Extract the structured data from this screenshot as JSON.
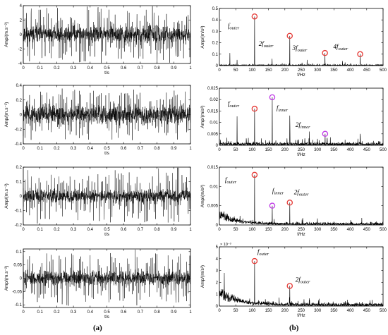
{
  "captions": {
    "left": "(a)",
    "right": "(b)"
  },
  "chart_data": [
    {
      "id": "a1",
      "type": "line",
      "xlabel": "t/s",
      "ylabel": "Amp/(m.s⁻²)",
      "xlim": [
        0,
        1
      ],
      "ylim": [
        -4,
        4
      ],
      "xticks": [
        "0",
        "0.1",
        "0.2",
        "0.3",
        "0.4",
        "0.5",
        "0.6",
        "0.7",
        "0.8",
        "0.9",
        "1"
      ],
      "yticks": [
        "4",
        "2",
        "0",
        "-2",
        "-4"
      ],
      "ytick_values": [
        4,
        2,
        0,
        -2,
        -4
      ],
      "series": [
        {
          "signal": {
            "amplitude": 1.1,
            "spike": 3.5,
            "spike_period": 0.0093,
            "seed": 11
          }
        }
      ]
    },
    {
      "id": "a2",
      "type": "line",
      "xlabel": "t/s",
      "ylabel": "Amp/(m.s⁻²)",
      "xlim": [
        0,
        1
      ],
      "ylim": [
        -0.4,
        0.4
      ],
      "xticks": [
        "0",
        "0.1",
        "0.2",
        "0.3",
        "0.4",
        "0.5",
        "0.6",
        "0.7",
        "0.8",
        "0.9",
        "1"
      ],
      "yticks": [
        "0.4",
        "0.2",
        "0",
        "-0.2",
        "-0.4"
      ],
      "ytick_values": [
        0.4,
        0.2,
        0,
        -0.2,
        -0.4
      ],
      "series": [
        {
          "signal": {
            "amplitude": 0.12,
            "spike": 0.3,
            "spike_period": 0.0093,
            "seed": 23
          }
        }
      ]
    },
    {
      "id": "a3",
      "type": "line",
      "xlabel": "t/s",
      "ylabel": "Amp/(m.s⁻²)",
      "xlim": [
        0,
        1
      ],
      "ylim": [
        -0.2,
        0.2
      ],
      "xticks": [
        "0",
        "0.1",
        "0.2",
        "0.3",
        "0.4",
        "0.5",
        "0.6",
        "0.7",
        "0.8",
        "0.9",
        "1"
      ],
      "yticks": [
        "0.2",
        "0.1",
        "0",
        "-0.1",
        "-0.2"
      ],
      "ytick_values": [
        0.2,
        0.1,
        0,
        -0.1,
        -0.2
      ],
      "series": [
        {
          "signal": {
            "amplitude": 0.045,
            "spike": 0.17,
            "spike_period": 0.0093,
            "seed": 37
          }
        }
      ]
    },
    {
      "id": "a4",
      "type": "line",
      "xlabel": "t/s",
      "ylabel": "Amp/(m.s⁻²)",
      "xlim": [
        0,
        1
      ],
      "ylim": [
        -0.11,
        0.11
      ],
      "xticks": [
        "0",
        "0.1",
        "0.2",
        "0.3",
        "0.4",
        "0.5",
        "0.6",
        "0.7",
        "0.8",
        "0.9",
        "1"
      ],
      "yticks": [
        "0.1",
        "0.05",
        "0",
        "-0.05",
        "-0.1"
      ],
      "ytick_values": [
        0.1,
        0.05,
        0,
        -0.05,
        -0.1
      ],
      "series": [
        {
          "signal": {
            "amplitude": 0.025,
            "spike": 0.09,
            "spike_period": 0.0093,
            "seed": 51
          }
        }
      ]
    },
    {
      "id": "b1",
      "type": "line",
      "xlabel": "f/Hz",
      "ylabel": "Amp/(m/s²)",
      "xlim": [
        0,
        500
      ],
      "ylim": [
        0,
        0.5
      ],
      "xticks": [
        "0",
        "50",
        "100",
        "150",
        "200",
        "250",
        "300",
        "350",
        "400",
        "450",
        "500"
      ],
      "yticks": [
        "0.5",
        "0.4",
        "0.3",
        "0.2",
        "0.1",
        "0"
      ],
      "ytick_values": [
        0.5,
        0.4,
        0.3,
        0.2,
        0.1,
        0
      ],
      "series": [
        {
          "noise": 0.008,
          "seed": 101,
          "peaks": [
            [
              107.5,
              0.43
            ],
            [
              215,
              0.26
            ],
            [
              322.5,
              0.11
            ],
            [
              430,
              0.1
            ],
            [
              32,
              0.11
            ],
            [
              161,
              0.06
            ],
            [
              268,
              0.05
            ],
            [
              54,
              0.05
            ],
            [
              376,
              0.04
            ]
          ]
        }
      ],
      "markers": [
        {
          "x": 107.5,
          "y": 0.43,
          "color": "#e53935",
          "sub": "outer",
          "coef": ""
        },
        {
          "x": 215,
          "y": 0.26,
          "color": "#e53935",
          "sub": "outer",
          "coef": "2"
        },
        {
          "x": 322.5,
          "y": 0.11,
          "color": "#e53935",
          "sub": "outer",
          "coef": "3"
        },
        {
          "x": 430,
          "y": 0.1,
          "color": "#e53935",
          "sub": "outer",
          "coef": "4"
        }
      ]
    },
    {
      "id": "b2",
      "type": "line",
      "xlabel": "f/Hz",
      "ylabel": "Amp/(m/s²)",
      "xlim": [
        0,
        500
      ],
      "ylim": [
        0,
        0.025
      ],
      "xticks": [
        "0",
        "50",
        "100",
        "150",
        "200",
        "250",
        "300",
        "350",
        "400",
        "450",
        "500"
      ],
      "yticks": [
        "0.025",
        "0.02",
        "0.015",
        "0.01",
        "0.005",
        "0"
      ],
      "ytick_values": [
        0.025,
        0.02,
        0.015,
        0.01,
        0.005,
        0
      ],
      "series": [
        {
          "noise": 0.0012,
          "seed": 202,
          "peaks": [
            [
              107.5,
              0.016
            ],
            [
              161.5,
              0.021
            ],
            [
              323,
              0.005
            ],
            [
              54,
              0.012
            ],
            [
              215,
              0.013
            ],
            [
              275,
              0.006
            ],
            [
              430,
              0.005
            ],
            [
              215.5,
              0.008
            ]
          ]
        }
      ],
      "markers": [
        {
          "x": 107.5,
          "y": 0.016,
          "color": "#e53935",
          "sub": "outer",
          "coef": ""
        },
        {
          "x": 161.5,
          "y": 0.021,
          "color": "#c03be6",
          "sub": "inner",
          "coef": ""
        },
        {
          "x": 323,
          "y": 0.005,
          "color": "#c03be6",
          "sub": "inner",
          "coef": "2"
        }
      ]
    },
    {
      "id": "b3",
      "type": "line",
      "xlabel": "f/Hz",
      "ylabel": "Amp/(m/s²)",
      "xlim": [
        0,
        500
      ],
      "ylim": [
        0,
        0.015
      ],
      "xticks": [
        "0",
        "50",
        "100",
        "150",
        "200",
        "250",
        "300",
        "350",
        "400",
        "450",
        "500"
      ],
      "yticks": [
        "0.015",
        "0.01",
        "0.005",
        "0"
      ],
      "ytick_values": [
        0.015,
        0.01,
        0.005,
        0
      ],
      "series": [
        {
          "noise": 0.0006,
          "seed": 303,
          "decay": 0.003,
          "peaks": [
            [
              107.5,
              0.013
            ],
            [
              161.5,
              0.005
            ],
            [
              215,
              0.0058
            ],
            [
              20,
              0.003
            ]
          ]
        }
      ],
      "markers": [
        {
          "x": 107.5,
          "y": 0.013,
          "color": "#e53935",
          "sub": "outer",
          "coef": ""
        },
        {
          "x": 161.5,
          "y": 0.005,
          "color": "#c03be6",
          "sub": "inner",
          "coef": ""
        },
        {
          "x": 215,
          "y": 0.0058,
          "color": "#e53935",
          "sub": "outer",
          "coef": "2"
        }
      ]
    },
    {
      "id": "b4",
      "type": "line",
      "xlabel": "f/Hz",
      "ylabel": "Amp/(m/s²)",
      "xlim": [
        0,
        500
      ],
      "ylim": [
        0,
        0.005
      ],
      "yscale_note": "× 10⁻³",
      "xticks": [
        "0",
        "50",
        "100",
        "150",
        "200",
        "250",
        "300",
        "350",
        "400",
        "450",
        "500"
      ],
      "yticks": [
        "5",
        "4",
        "3",
        "2",
        "1",
        "0"
      ],
      "ytick_values": [
        0.005,
        0.004,
        0.003,
        0.002,
        0.001,
        0
      ],
      "series": [
        {
          "noise": 0.00025,
          "seed": 404,
          "decay": 0.0014,
          "peaks": [
            [
              107.5,
              0.0038
            ],
            [
              215,
              0.0017
            ],
            [
              15,
              0.0028
            ]
          ]
        }
      ],
      "markers": [
        {
          "x": 107.5,
          "y": 0.0038,
          "color": "#e53935",
          "sub": "outer",
          "coef": ""
        },
        {
          "x": 215,
          "y": 0.0017,
          "color": "#e53935",
          "sub": "outer",
          "coef": "2"
        }
      ]
    }
  ]
}
